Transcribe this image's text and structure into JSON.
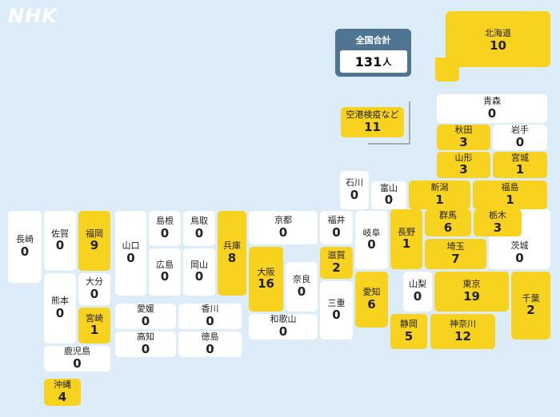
{
  "brand": {
    "logo_text": "NHK"
  },
  "total": {
    "label": "全国合計",
    "value": "131",
    "unit": "人"
  },
  "airport": {
    "name": "空港検疫など",
    "value": "11"
  },
  "prefectures": {
    "hokkaido": {
      "name": "北海道",
      "value": "10"
    },
    "aomori": {
      "name": "青森",
      "value": "0"
    },
    "akita": {
      "name": "秋田",
      "value": "3"
    },
    "iwate": {
      "name": "岩手",
      "value": "0"
    },
    "yamagata": {
      "name": "山形",
      "value": "3"
    },
    "miyagi": {
      "name": "宮城",
      "value": "1"
    },
    "ishikawa": {
      "name": "石川",
      "value": "0"
    },
    "toyama": {
      "name": "富山",
      "value": "0"
    },
    "niigata": {
      "name": "新潟",
      "value": "1"
    },
    "fukushima": {
      "name": "福島",
      "value": "1"
    },
    "nagasaki": {
      "name": "長崎",
      "value": "0"
    },
    "saga": {
      "name": "佐賀",
      "value": "0"
    },
    "fukuoka": {
      "name": "福岡",
      "value": "9"
    },
    "yamaguchi": {
      "name": "山口",
      "value": "0"
    },
    "shimane": {
      "name": "島根",
      "value": "0"
    },
    "tottori": {
      "name": "鳥取",
      "value": "0"
    },
    "hyogo": {
      "name": "兵庫",
      "value": "8"
    },
    "kyoto": {
      "name": "京都",
      "value": "0"
    },
    "fukui": {
      "name": "福井",
      "value": "0"
    },
    "gifu": {
      "name": "岐阜",
      "value": "0"
    },
    "nagano": {
      "name": "長野",
      "value": "1"
    },
    "gunma": {
      "name": "群馬",
      "value": "6"
    },
    "tochigi": {
      "name": "栃木",
      "value": "3"
    },
    "hiroshima": {
      "name": "広島",
      "value": "0"
    },
    "okayama": {
      "name": "岡山",
      "value": "0"
    },
    "osaka": {
      "name": "大阪",
      "value": "16"
    },
    "shiga": {
      "name": "滋賀",
      "value": "2"
    },
    "saitama": {
      "name": "埼玉",
      "value": "7"
    },
    "ibaraki": {
      "name": "茨城",
      "value": "0"
    },
    "oita": {
      "name": "大分",
      "value": "0"
    },
    "kumamoto": {
      "name": "熊本",
      "value": "0"
    },
    "miyazaki": {
      "name": "宮崎",
      "value": "1"
    },
    "nara": {
      "name": "奈良",
      "value": "0"
    },
    "aichi": {
      "name": "愛知",
      "value": "6"
    },
    "yamanashi": {
      "name": "山梨",
      "value": "0"
    },
    "tokyo": {
      "name": "東京",
      "value": "19"
    },
    "chiba": {
      "name": "千葉",
      "value": "2"
    },
    "ehime": {
      "name": "愛媛",
      "value": "0"
    },
    "kagawa": {
      "name": "香川",
      "value": "0"
    },
    "mie": {
      "name": "三重",
      "value": "0"
    },
    "wakayama": {
      "name": "和歌山",
      "value": "0"
    },
    "kochi": {
      "name": "高知",
      "value": "0"
    },
    "tokushima": {
      "name": "徳島",
      "value": "0"
    },
    "shizuoka": {
      "name": "静岡",
      "value": "5"
    },
    "kanagawa": {
      "name": "神奈川",
      "value": "12"
    },
    "kagoshima": {
      "name": "鹿児島",
      "value": "0"
    },
    "okinawa": {
      "name": "沖縄",
      "value": "4"
    }
  },
  "colors": {
    "highlight": "#f7d21e",
    "zero": "#ffffff",
    "background": "#dcecf9",
    "total_panel": "#4f7592"
  }
}
